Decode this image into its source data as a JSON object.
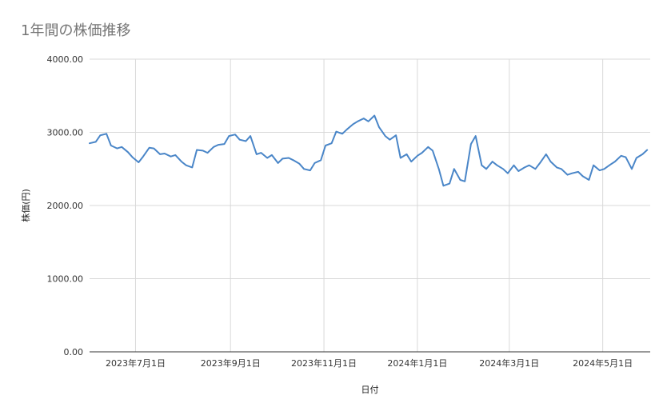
{
  "chart_data": {
    "type": "line",
    "title": "1年間の株価推移",
    "xlabel": "日付",
    "ylabel": "株価(円)",
    "ylim": [
      0,
      4000
    ],
    "y_ticks": [
      "0.00",
      "1000.00",
      "2000.00",
      "3000.00",
      "4000.00"
    ],
    "x_ticks": [
      {
        "label": "2023年7月1日",
        "date": "2023-07-01"
      },
      {
        "label": "2023年9月1日",
        "date": "2023-09-01"
      },
      {
        "label": "2023年11月1日",
        "date": "2023-11-01"
      },
      {
        "label": "2024年1月1日",
        "date": "2024-01-01"
      },
      {
        "label": "2024年3月1日",
        "date": "2024-03-01"
      },
      {
        "label": "2024年5月1日",
        "date": "2024-05-01"
      }
    ],
    "xlim": [
      "2023-06-01",
      "2024-06-01"
    ],
    "grid": true,
    "line_color": "#4a86c8",
    "series": [
      {
        "x": [
          "2023-06-01",
          "2023-06-05",
          "2023-06-08",
          "2023-06-12",
          "2023-06-15",
          "2023-06-19",
          "2023-06-22",
          "2023-06-26",
          "2023-06-29",
          "2023-07-03",
          "2023-07-06",
          "2023-07-10",
          "2023-07-13",
          "2023-07-17",
          "2023-07-20",
          "2023-07-24",
          "2023-07-27",
          "2023-07-31",
          "2023-08-03",
          "2023-08-07",
          "2023-08-10",
          "2023-08-14",
          "2023-08-17",
          "2023-08-21",
          "2023-08-24",
          "2023-08-28",
          "2023-08-31",
          "2023-09-04",
          "2023-09-07",
          "2023-09-11",
          "2023-09-14",
          "2023-09-18",
          "2023-09-21",
          "2023-09-25",
          "2023-09-28",
          "2023-10-02",
          "2023-10-05",
          "2023-10-09",
          "2023-10-12",
          "2023-10-16",
          "2023-10-19",
          "2023-10-23",
          "2023-10-26",
          "2023-10-30",
          "2023-11-02",
          "2023-11-06",
          "2023-11-09",
          "2023-11-13",
          "2023-11-16",
          "2023-11-20",
          "2023-11-23",
          "2023-11-27",
          "2023-11-30",
          "2023-12-04",
          "2023-12-07",
          "2023-12-11",
          "2023-12-14",
          "2023-12-18",
          "2023-12-21",
          "2023-12-25",
          "2023-12-28",
          "2024-01-01",
          "2024-01-04",
          "2024-01-08",
          "2024-01-11",
          "2024-01-15",
          "2024-01-18",
          "2024-01-22",
          "2024-01-25",
          "2024-01-29",
          "2024-02-01",
          "2024-02-05",
          "2024-02-08",
          "2024-02-12",
          "2024-02-15",
          "2024-02-19",
          "2024-02-22",
          "2024-02-26",
          "2024-02-29",
          "2024-03-04",
          "2024-03-07",
          "2024-03-11",
          "2024-03-14",
          "2024-03-18",
          "2024-03-21",
          "2024-03-25",
          "2024-03-28",
          "2024-04-01",
          "2024-04-04",
          "2024-04-08",
          "2024-04-11",
          "2024-04-15",
          "2024-04-18",
          "2024-04-22",
          "2024-04-25",
          "2024-04-29",
          "2024-05-02",
          "2024-05-06",
          "2024-05-09",
          "2024-05-13",
          "2024-05-16",
          "2024-05-20",
          "2024-05-23",
          "2024-05-27",
          "2024-05-30"
        ],
        "values": [
          2850,
          2870,
          2960,
          2980,
          2820,
          2780,
          2800,
          2730,
          2660,
          2590,
          2670,
          2790,
          2780,
          2700,
          2710,
          2670,
          2690,
          2600,
          2550,
          2520,
          2760,
          2750,
          2720,
          2800,
          2830,
          2840,
          2950,
          2970,
          2900,
          2880,
          2950,
          2700,
          2720,
          2650,
          2690,
          2580,
          2640,
          2650,
          2620,
          2570,
          2500,
          2480,
          2580,
          2620,
          2820,
          2850,
          3010,
          2980,
          3040,
          3110,
          3150,
          3190,
          3150,
          3230,
          3070,
          2950,
          2900,
          2960,
          2650,
          2700,
          2600,
          2680,
          2720,
          2800,
          2750,
          2500,
          2270,
          2300,
          2500,
          2350,
          2330,
          2840,
          2950,
          2550,
          2500,
          2600,
          2550,
          2500,
          2440,
          2550,
          2470,
          2520,
          2550,
          2500,
          2580,
          2700,
          2600,
          2520,
          2500,
          2420,
          2440,
          2460,
          2400,
          2350,
          2550,
          2480,
          2500,
          2560,
          2600,
          2680,
          2660,
          2500,
          2650,
          2700,
          2760
        ],
        "name": ""
      }
    ]
  }
}
